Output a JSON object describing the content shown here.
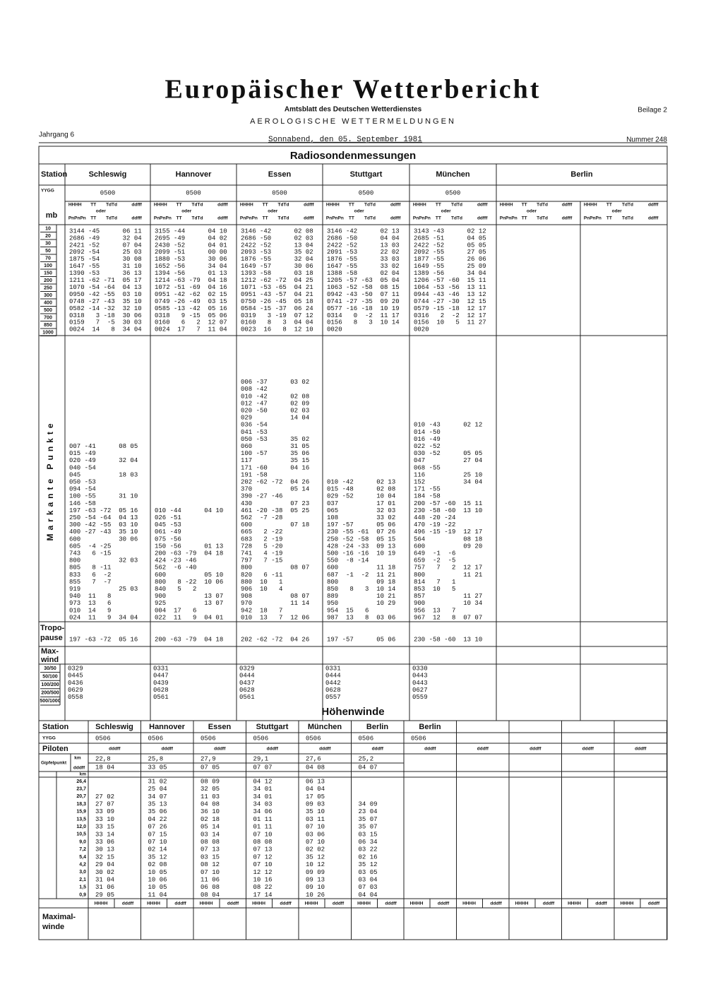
{
  "header": {
    "title": "Europäischer Wetterbericht",
    "subtitle": "Amtsblatt des Deutschen Wetterdienstes",
    "section": "AEROLOGISCHE WETTERMELDUNGEN",
    "beilage": "Beilage 2",
    "jahrgang": "Jahrgang 6",
    "date": "Sonnabend, den 05. September 1981",
    "nummer": "Nummer 248"
  },
  "radiosonde": {
    "title": "Radiosondenmessungen",
    "station_label": "Station",
    "yygg_label": "YYGG",
    "mb_label": "mb",
    "levels": [
      "10",
      "20",
      "30",
      "50",
      "70",
      "100",
      "150",
      "200",
      "250",
      "300",
      "400",
      "500",
      "700",
      "850",
      "1000"
    ],
    "col_head": {
      "line1": [
        "HHHH",
        "TT",
        "TdTd",
        "ddfff"
      ],
      "oder": "oder",
      "line2": [
        "PnPnPn",
        "TT",
        "TdTd",
        "ddfff"
      ]
    },
    "markante_label": "Markante Punkte",
    "tropopause_label": [
      "Tropo-",
      "pause"
    ],
    "maxwind_label": [
      "Max-",
      "wind"
    ],
    "maxwind_levels": [
      "30/50",
      "50/100",
      "100/200",
      "200/500",
      "500/1000"
    ],
    "stations": [
      {
        "name": "Schleswig",
        "yygg": "0500",
        "rows": [
          "3144 -45      06 11",
          "2686 -49      32 04",
          "2421 -52      07 04",
          "2092 -54      25 03",
          "1875 -54      30 08",
          "1647 -55      31 10",
          "1390 -53      36 13",
          "1211 -62 -71  05 17",
          "1070 -54 -64  04 13",
          "0950 -42 -55  03 10",
          "0748 -27 -43  35 10",
          "0582 -14 -32  32 10",
          "0318   3 -18  30 06",
          "0159   7  -5  30 03",
          "0024  14   8  34 04"
        ],
        "markante": [
          "007 -41      08 05",
          "015 -49",
          "020 -49      32 04",
          "040 -54",
          "045          18 03",
          "050 -53",
          "094 -54",
          "100 -55      31 10",
          "146 -58",
          "197 -63 -72  05 16",
          "250 -54 -64  04 13",
          "300 -42 -55  03 10",
          "400 -27 -43  35 10",
          "600          30 06",
          "605  -4 -25",
          "743   6 -15",
          "800          32 03",
          "805   8 -11",
          "833   6  -2",
          "855   7  -7",
          "919          25 03",
          "940  11   8",
          "973  13   6",
          "010  14   9",
          "024  11   9  34 04"
        ],
        "tropopause": "197 -63 -72  05 16",
        "maxwind": [
          "0329",
          "0445",
          "0436",
          "0629",
          "0558"
        ]
      },
      {
        "name": "Hannover",
        "yygg": "0500",
        "rows": [
          "3155 -44      04 10",
          "2695 -49      04 02",
          "2430 -52      04 01",
          "2099 -51      00 00",
          "1880 -53      30 06",
          "1652 -56      34 04",
          "1394 -56      01 13",
          "1214 -63 -79  04 18",
          "1072 -51 -69  04 16",
          "0951 -42 -62  02 15",
          "0749 -26 -49  03 15",
          "0585 -13 -42  05 16",
          "0318   9 -15  05 06",
          "0160   6   2  12 07",
          "0024  17   7  11 04"
        ],
        "markante": [
          "010 -44      04 10",
          "026 -51",
          "045 -53",
          "061 -49",
          "075 -56",
          "150 -56      01 13",
          "200 -63 -79  04 18",
          "424 -23 -46",
          "562  -6 -40",
          "600          05 10",
          "800   8 -22  10 06",
          "840   5   2",
          "900          13 07",
          "925          13 07",
          "004  17   6",
          "022  11   9  04 01"
        ],
        "tropopause": "200 -63 -79  04 18",
        "maxwind": [
          "0331",
          "0447",
          "0439",
          "0628",
          "0561"
        ]
      },
      {
        "name": "Essen",
        "yygg": "0500",
        "rows": [
          "3146 -42      02 08",
          "2686 -50      02 03",
          "2422 -52      13 04",
          "2093 -53      35 02",
          "1876 -55      32 04",
          "1649 -57      30 06",
          "1393 -58      03 18",
          "1212 -62 -72  04 25",
          "1071 -53 -65  04 21",
          "0951 -43 -57  04 21",
          "0750 -26 -45  05 18",
          "0584 -15 -37  06 24",
          "0319   3 -19  07 12",
          "0160   8   3  04 04",
          "0023  16   8  12 10"
        ],
        "markante": [
          "006 -37      03 02",
          "008 -42",
          "010 -42      02 08",
          "012 -47      02 09",
          "020 -50      02 03",
          "029          14 04",
          "036 -54",
          "041 -53",
          "050 -53      35 02",
          "060          31 05",
          "100 -57      35 06",
          "117          35 15",
          "171 -60      04 16",
          "191 -58",
          "202 -62 -72  04 26",
          "370          05 14",
          "390 -27 -46",
          "430          07 23",
          "461 -20 -38  05 25",
          "562  -7 -28",
          "600          07 18",
          "665   2 -22",
          "683   2 -19",
          "728   5 -20",
          "741   4 -19",
          "797   7 -15",
          "800          08 07",
          "820   6 -11",
          "880  10   1",
          "906  10   4",
          "908          08 07",
          "970          11 14",
          "942  18   7",
          "010  13   7  12 06"
        ],
        "tropopause": "202 -62 -72  04 26",
        "maxwind": [
          "0329",
          "0444",
          "0437",
          "0628",
          "0561"
        ]
      },
      {
        "name": "Stuttgart",
        "yygg": "0500",
        "rows": [
          "3146 -42      02 13",
          "2686 -50      04 04",
          "2422 -52      13 03",
          "2091 -53      22 02",
          "1876 -55      33 03",
          "1647 -55      33 02",
          "1388 -58      02 04",
          "1205 -57 -63  05 04",
          "1063 -52 -58  08 15",
          "0942 -43 -50  07 11",
          "0741 -27 -35  09 20",
          "0577 -16 -18  10 19",
          "0314   0  -2  11 17",
          "0156   8   3  10 14",
          "0020"
        ],
        "markante": [
          "010 -42      02 13",
          "015 -48      02 08",
          "029 -52      10 04",
          "037          17 01",
          "065          32 03",
          "108          33 02",
          "197 -57      05 06",
          "230 -55 -61  07 26",
          "250 -52 -58  05 15",
          "428 -24 -33  09 13",
          "500 -16 -16  10 19",
          "550  -8 -14",
          "600          11 18",
          "687  -1  -2  11 21",
          "800          09 18",
          "850   8   3  10 14",
          "889          10 21",
          "950          10 29",
          "954  15   6",
          "987  13   8  03 06"
        ],
        "tropopause": "197 -57      05 06",
        "maxwind": [
          "0331",
          "0444",
          "0442",
          "0628",
          "0557"
        ]
      },
      {
        "name": "München",
        "yygg": "0500",
        "rows": [
          "3143 -43      02 12",
          "2685 -51      04 05",
          "2422 -52      05 05",
          "2092 -55      27 05",
          "1877 -55      26 06",
          "1649 -55      25 09",
          "1389 -56      34 04",
          "1206 -57 -60  15 11",
          "1064 -53 -56  13 11",
          "0944 -43 -46  13 12",
          "0744 -27 -30  12 15",
          "0579 -15 -18  12 17",
          "0316   2  -2  12 17",
          "0156  10   5  11 27",
          "0020"
        ],
        "markante": [
          "010 -43      02 12",
          "014 -50",
          "016 -49",
          "022 -52",
          "030 -52      05 05",
          "047          27 04",
          "068 -55",
          "116          25 10",
          "152          34 04",
          "171 -55",
          "184 -58",
          "200 -57 -60  15 11",
          "230 -58 -60  13 10",
          "448 -20 -24",
          "470 -19 -22",
          "496 -15 -19  12 17",
          "564          08 18",
          "600          09 20",
          "649  -1  -6",
          "659  -2  -5",
          "757   7   2  12 17",
          "800          11 21",
          "814   7   1",
          "853  10   5",
          "857          11 27",
          "900          10 34",
          "956  13   7",
          "967  12   8  07 07"
        ],
        "tropopause": "230 -58 -60  13 10",
        "maxwind": [
          "0330",
          "0443",
          "0443",
          "0627",
          "0559"
        ]
      },
      {
        "name": "Berlin"
      }
    ]
  },
  "hoehenwinde": {
    "title": "Höhenwinde",
    "station_label": "Station",
    "yygg_label": "YYGG",
    "piloten_label": "Piloten",
    "dddff": "dddff",
    "hhhh": "HHHH",
    "gipfel_label": "Gipfelpunkt",
    "km_label": "km",
    "maximal_label": [
      "Maximal-",
      "winde"
    ],
    "levels": [
      "26,4",
      "23,7",
      "20,7",
      "18,3",
      "15,9",
      "13,5",
      "12,0",
      "10,5",
      "9,0",
      "7,2",
      "5,4",
      "4,2",
      "3,0",
      "2,1",
      "1,5",
      "0,9"
    ],
    "stations": [
      {
        "name": "Schleswig",
        "yygg": "0506",
        "gipfel_km": "22,8",
        "gipfel_dddff": "18 04",
        "values": [
          null,
          null,
          "27 02",
          "27 07",
          "33 09",
          "33 10",
          "33 15",
          "33 14",
          "33 06",
          "30 13",
          "32 15",
          "29 04",
          "30 02",
          "31 04",
          "31 06",
          "29 05"
        ]
      },
      {
        "name": "Hannover",
        "yygg": "0506",
        "gipfel_km": "25,8",
        "gipfel_dddff": "33 05",
        "values": [
          "31 02",
          "25 04",
          "34 07",
          "35 13",
          "35 06",
          "04 22",
          "07 26",
          "07 15",
          "07 10",
          "02 14",
          "35 12",
          "02 08",
          "10 05",
          "10 06",
          "10 05",
          "11 04"
        ]
      },
      {
        "name": "Essen",
        "yygg": "0506",
        "gipfel_km": "27,9",
        "gipfel_dddff": "07 05",
        "values": [
          "08 09",
          "32 05",
          "11 03",
          "04 08",
          "36 10",
          "02 18",
          "05 14",
          "03 14",
          "08 08",
          "07 13",
          "03 15",
          "08 12",
          "07 10",
          "11 06",
          "06 08",
          "08 04"
        ]
      },
      {
        "name": "Stuttgart",
        "yygg": "0506",
        "gipfel_km": "29,1",
        "gipfel_dddff": "07 07",
        "values": [
          "04 12",
          "34 01",
          "34 01",
          "34 03",
          "34 06",
          "01 11",
          "01 11",
          "07 10",
          "08 08",
          "07 13",
          "07 12",
          "07 10",
          "12 12",
          "10 16",
          "08 22",
          "17 14"
        ]
      },
      {
        "name": "München",
        "yygg": "0506",
        "gipfel_km": "27,6",
        "gipfel_dddff": "04 08",
        "values": [
          "06 13",
          "04 04",
          "17 05",
          "09 03",
          "35 10",
          "03 11",
          "07 10",
          "03 06",
          "07 10",
          "02 02",
          "35 12",
          "10 12",
          "09 09",
          "09 13",
          "09 10",
          "10 26"
        ]
      },
      {
        "name": "Berlin",
        "yygg": "0506",
        "gipfel_km": "25,2",
        "gipfel_dddff": "04 07",
        "values": [
          null,
          null,
          null,
          "34 09",
          "23 04",
          "35 07",
          "35 07",
          "03 15",
          "06 34",
          "03 22",
          "02 16",
          "35 12",
          "03 05",
          "03 04",
          "07 03",
          "04 04"
        ]
      },
      {
        "name": "Berlin",
        "yygg": "0506"
      }
    ]
  }
}
